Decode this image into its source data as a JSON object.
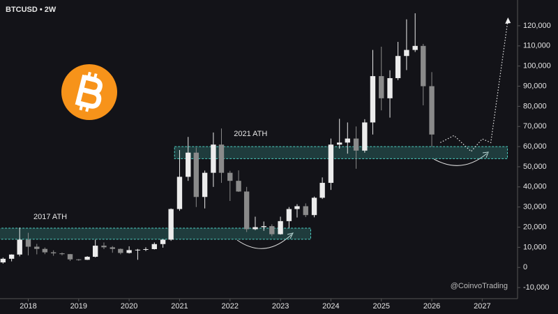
{
  "chart_data": {
    "type": "candlestick",
    "title": "BTCUSD • 2W",
    "x": [
      2017.5,
      2017.67,
      2017.83,
      2018.0,
      2018.17,
      2018.33,
      2018.5,
      2018.67,
      2018.83,
      2019.0,
      2019.17,
      2019.33,
      2019.5,
      2019.67,
      2019.83,
      2020.0,
      2020.17,
      2020.33,
      2020.5,
      2020.67,
      2020.83,
      2021.0,
      2021.17,
      2021.33,
      2021.5,
      2021.67,
      2021.83,
      2022.0,
      2022.17,
      2022.33,
      2022.5,
      2022.67,
      2022.83,
      2023.0,
      2023.17,
      2023.33,
      2023.5,
      2023.67,
      2023.83,
      2024.0,
      2024.17,
      2024.33,
      2024.5,
      2024.67,
      2024.83,
      2025.0,
      2025.17,
      2025.33,
      2025.5,
      2025.67,
      2025.83,
      2026.0
    ],
    "open": [
      2500,
      4300,
      6400,
      13800,
      10300,
      9200,
      7500,
      7000,
      6600,
      4000,
      3800,
      5300,
      10800,
      10000,
      9200,
      7200,
      8600,
      8800,
      9100,
      11600,
      13800,
      29000,
      45000,
      57000,
      35000,
      47000,
      61000,
      47000,
      43000,
      37700,
      19000,
      20000,
      20500,
      16500,
      23000,
      29000,
      30400,
      26000,
      34600,
      42000,
      61000,
      62000,
      64000,
      58000,
      72000,
      95000,
      84000,
      94000,
      105000,
      108000,
      110000,
      90000
    ],
    "high": [
      4900,
      6500,
      19800,
      17200,
      11700,
      9900,
      8500,
      7400,
      6700,
      4200,
      5600,
      13800,
      12400,
      10600,
      9400,
      10500,
      9200,
      10000,
      12400,
      14000,
      29300,
      58300,
      64800,
      59500,
      48100,
      67000,
      69000,
      48000,
      48200,
      40000,
      25200,
      22800,
      21400,
      25200,
      30000,
      31400,
      31800,
      35200,
      44700,
      64000,
      73800,
      72000,
      70000,
      73600,
      108000,
      109600,
      97900,
      112000,
      123200,
      126200,
      111000,
      97000
    ],
    "low": [
      1900,
      3000,
      5500,
      6000,
      6500,
      6600,
      5800,
      6000,
      3200,
      3300,
      3700,
      5000,
      9100,
      7300,
      6500,
      6900,
      3800,
      8100,
      8900,
      9800,
      13200,
      28100,
      43000,
      30000,
      29300,
      40000,
      42000,
      33000,
      37500,
      17600,
      18500,
      18200,
      15500,
      16300,
      19600,
      24800,
      25000,
      24900,
      34000,
      38500,
      59000,
      56500,
      49000,
      57000,
      66000,
      78000,
      74400,
      93000,
      98000,
      107000,
      80500,
      60000
    ],
    "close": [
      4300,
      6400,
      13800,
      10300,
      9200,
      7500,
      7000,
      6600,
      4000,
      3800,
      5300,
      10800,
      10000,
      9200,
      7200,
      8600,
      8800,
      9100,
      11600,
      13800,
      29000,
      45000,
      57000,
      35000,
      47000,
      61000,
      47000,
      43000,
      37700,
      19000,
      20000,
      20500,
      16500,
      23000,
      29000,
      30400,
      26000,
      34600,
      42000,
      61000,
      62000,
      64000,
      58000,
      72000,
      95000,
      84000,
      94000,
      105000,
      108000,
      110000,
      90000,
      66000
    ],
    "up_color": "#ececec",
    "down_color": "#8a8a8a",
    "xlim": [
      2017.44,
      2027.7
    ],
    "ylim": [
      -15500,
      132800
    ],
    "xticks": [
      2018,
      2019,
      2020,
      2021,
      2022,
      2023,
      2024,
      2025,
      2026,
      2027
    ],
    "yticks": [
      {
        "value": -10000,
        "label": "-10,000"
      },
      0,
      {
        "value": 10000,
        "label": "10,000"
      },
      {
        "value": 20000,
        "label": "20,000"
      },
      {
        "value": 30000,
        "label": "30,000"
      },
      {
        "value": 40000,
        "label": "40,000"
      },
      {
        "value": 50000,
        "label": "50,000"
      },
      {
        "value": 60000,
        "label": "60,000"
      },
      {
        "value": 70000,
        "label": "70,000"
      },
      {
        "value": 80000,
        "label": "80,000"
      },
      {
        "value": 90000,
        "label": "90,000"
      },
      {
        "value": 100000,
        "label": "100,000"
      },
      {
        "value": 110000,
        "label": "110,000"
      },
      {
        "value": 120000,
        "label": "120,000"
      }
    ],
    "zone_color": "#4fd1c5",
    "zones": [
      {
        "label": "2017 ATH",
        "x": [
          2017.4,
          2023.6
        ],
        "y": [
          14000,
          19500
        ]
      },
      {
        "label": "2021 ATH",
        "x": [
          2020.9,
          2027.5
        ],
        "y": [
          54000,
          60000
        ]
      }
    ],
    "projection": {
      "x": [
        2026.17,
        2026.44,
        2026.78,
        2027.0,
        2027.17,
        2027.51
      ],
      "y": [
        62000,
        65500,
        57600,
        63800,
        62000,
        123100
      ]
    },
    "watermark": "@CoinvoTrading"
  }
}
